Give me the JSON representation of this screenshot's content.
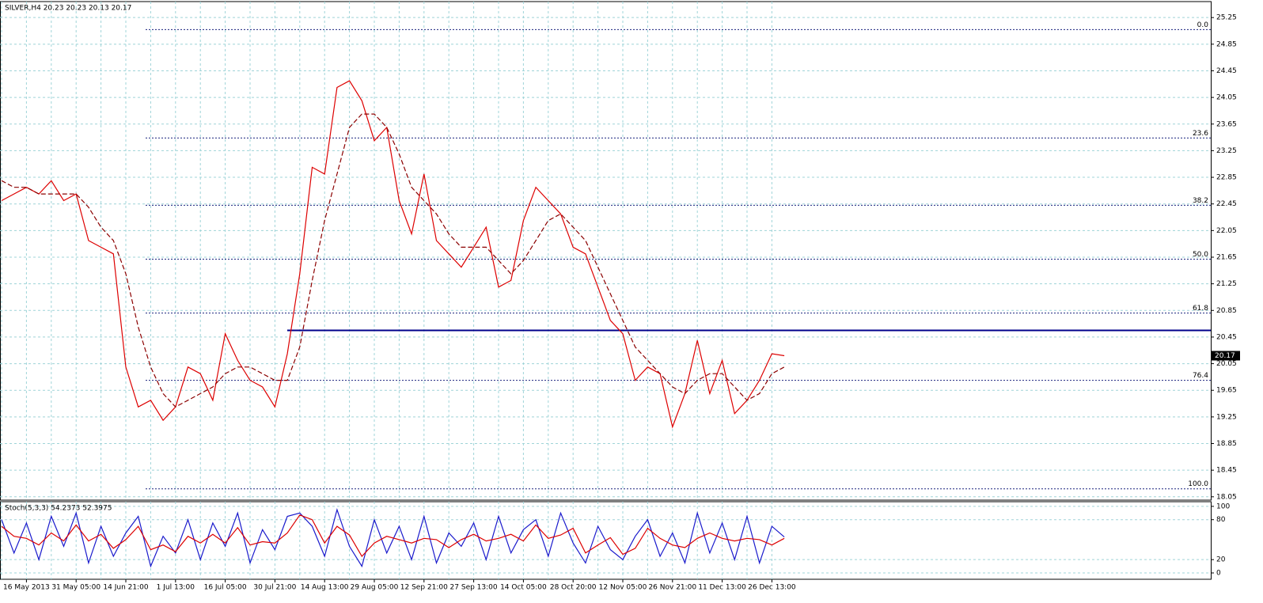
{
  "chart_data": [
    {
      "type": "line",
      "title": "SILVER,H4  20.23 20.23 20.13 20.17",
      "categories": [
        null,
        null,
        "16 May 2013",
        null,
        null,
        null,
        "31 May 05:00",
        null,
        null,
        null,
        "14 Jun 21:00",
        null,
        null,
        null,
        "1 Jul 13:00",
        null,
        null,
        null,
        "16 Jul 05:00",
        null,
        null,
        null,
        "30 Jul 21:00",
        null,
        null,
        null,
        "14 Aug 13:00",
        null,
        null,
        null,
        "29 Aug 05:00",
        null,
        null,
        null,
        "12 Sep 21:00",
        null,
        null,
        null,
        "27 Sep 13:00",
        null,
        null,
        null,
        "14 Oct 05:00",
        null,
        null,
        null,
        "28 Oct 20:00",
        null,
        null,
        null,
        "12 Nov 05:00",
        null,
        null,
        null,
        "26 Nov 21:00",
        null,
        null,
        null,
        "11 Dec 13:00",
        null,
        null,
        null,
        "26 Dec 13:00",
        null
      ],
      "series": [
        {
          "color": "#dd0000",
          "values": [
            22.5,
            22.6,
            22.7,
            22.6,
            22.8,
            22.5,
            22.6,
            21.9,
            21.8,
            21.7,
            20.0,
            19.4,
            19.5,
            19.2,
            19.4,
            20.0,
            19.9,
            19.5,
            20.5,
            20.1,
            19.8,
            19.7,
            19.4,
            20.2,
            21.4,
            23.0,
            22.9,
            24.2,
            24.3,
            24.0,
            23.4,
            23.6,
            22.5,
            22.0,
            22.9,
            21.9,
            21.7,
            21.5,
            21.8,
            22.1,
            21.2,
            21.3,
            22.2,
            22.7,
            22.5,
            22.3,
            21.8,
            21.7,
            21.2,
            20.7,
            20.5,
            19.8,
            20.0,
            19.9,
            19.1,
            19.6,
            20.4,
            19.6,
            20.1,
            19.3,
            19.5,
            19.8,
            20.2,
            20.17
          ]
        },
        {
          "color": "#8b0000",
          "style": "dashed",
          "values": [
            22.8,
            22.7,
            22.7,
            22.6,
            22.6,
            22.6,
            22.6,
            22.4,
            22.1,
            21.9,
            21.4,
            20.6,
            20.0,
            19.6,
            19.4,
            19.5,
            19.6,
            19.7,
            19.9,
            20.0,
            20.0,
            19.9,
            19.8,
            19.8,
            20.3,
            21.3,
            22.2,
            22.9,
            23.6,
            23.8,
            23.8,
            23.6,
            23.2,
            22.7,
            22.5,
            22.3,
            22.0,
            21.8,
            21.8,
            21.8,
            21.6,
            21.4,
            21.6,
            21.9,
            22.2,
            22.3,
            22.1,
            21.9,
            21.5,
            21.1,
            20.7,
            20.3,
            20.1,
            19.9,
            19.7,
            19.6,
            19.8,
            19.9,
            19.9,
            19.7,
            19.5,
            19.6,
            19.9,
            20.0
          ]
        }
      ],
      "ylim": [
        18.0,
        25.49
      ],
      "yticks": [
        18.05,
        18.45,
        18.85,
        19.25,
        19.65,
        20.05,
        20.45,
        20.85,
        21.25,
        21.65,
        22.05,
        22.45,
        22.85,
        23.25,
        23.65,
        24.05,
        24.45,
        24.85,
        25.25
      ],
      "grid": true,
      "levels": [
        {
          "value": 25.07,
          "label": "0.0"
        },
        {
          "value": 23.44,
          "label": "23.6"
        },
        {
          "value": 22.43,
          "label": "38.2"
        },
        {
          "value": 21.62,
          "label": "50.0"
        },
        {
          "value": 20.81,
          "label": "61.8"
        },
        {
          "value": 19.8,
          "label": "76.4"
        },
        {
          "value": 18.17,
          "label": "100.0"
        }
      ],
      "hline": 20.55,
      "last_price": 20.17
    },
    {
      "type": "line",
      "title": "Stoch(5,3,3) 54.2373 52.3975",
      "series": [
        {
          "color": "#1a1acc",
          "values": [
            80,
            30,
            75,
            20,
            85,
            40,
            90,
            15,
            70,
            25,
            60,
            85,
            10,
            55,
            30,
            80,
            20,
            75,
            40,
            90,
            15,
            65,
            35,
            85,
            90,
            70,
            25,
            95,
            40,
            10,
            80,
            30,
            70,
            20,
            85,
            15,
            60,
            40,
            75,
            20,
            85,
            30,
            65,
            80,
            25,
            90,
            45,
            15,
            70,
            35,
            20,
            55,
            80,
            25,
            60,
            15,
            90,
            30,
            75,
            20,
            85,
            15,
            70,
            54
          ]
        },
        {
          "color": "#dd0000",
          "values": [
            70,
            55,
            52,
            42,
            60,
            48,
            72,
            48,
            58,
            37,
            50,
            70,
            35,
            42,
            32,
            55,
            45,
            58,
            45,
            68,
            42,
            47,
            45,
            60,
            87,
            80,
            45,
            70,
            57,
            25,
            45,
            55,
            50,
            45,
            52,
            50,
            38,
            50,
            58,
            48,
            52,
            58,
            48,
            72,
            52,
            57,
            67,
            30,
            42,
            53,
            28,
            37,
            67,
            52,
            42,
            38,
            52,
            60,
            52,
            48,
            52,
            50,
            42,
            52
          ]
        }
      ],
      "ylim": [
        -9.5,
        107
      ],
      "yticks": [
        0,
        20,
        80,
        100
      ],
      "grid": true
    }
  ]
}
